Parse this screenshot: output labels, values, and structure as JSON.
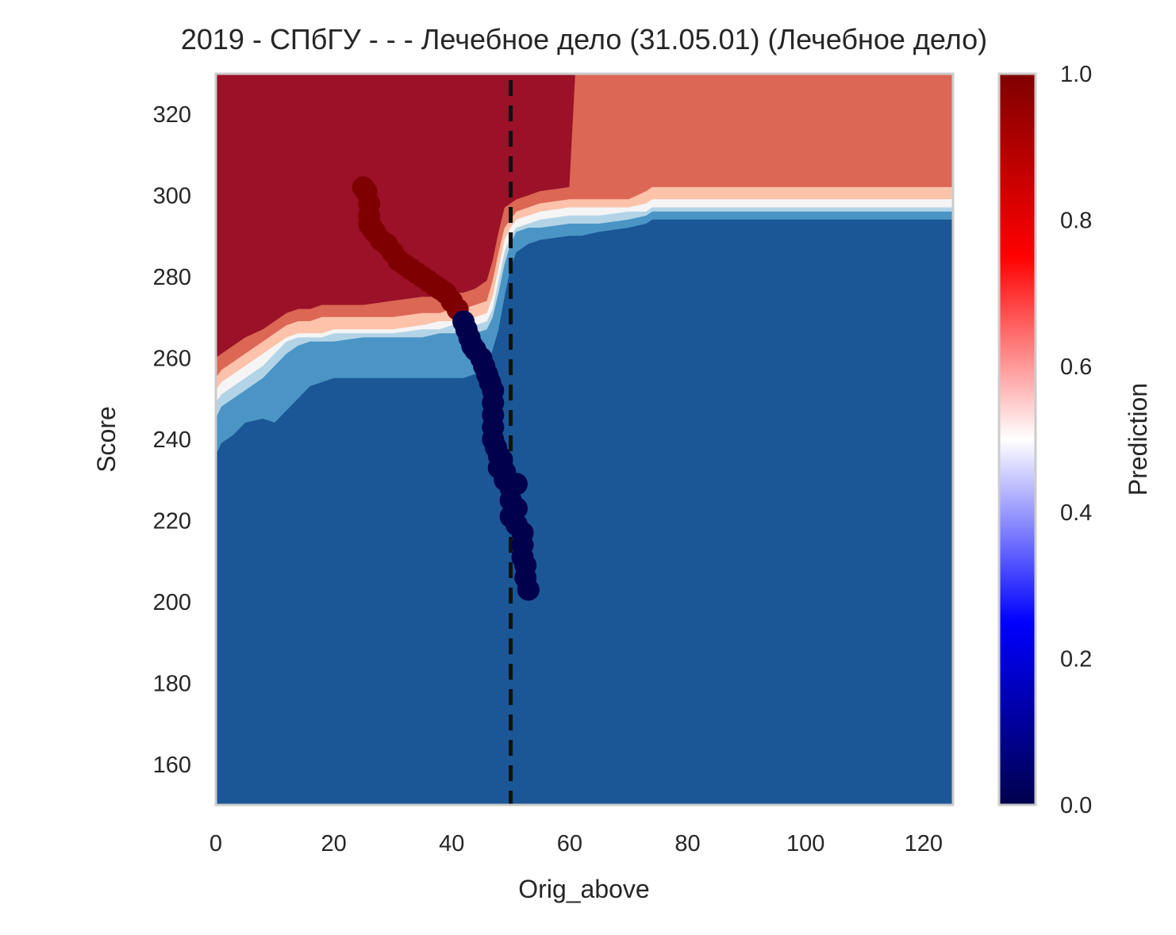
{
  "chart_data": {
    "type": "heatmap",
    "title": "2019 - СПбГУ - - - Лечебное дело (31.05.01) (Лечебное дело)",
    "xlabel": "Orig_above",
    "ylabel": "Score",
    "xlim": [
      0,
      125
    ],
    "ylim": [
      150,
      330
    ],
    "x_ticks": [
      0,
      20,
      40,
      60,
      80,
      100,
      120
    ],
    "y_ticks": [
      160,
      180,
      200,
      220,
      240,
      260,
      280,
      300,
      320
    ],
    "grid": false,
    "legend": "none",
    "colormap": "seismic",
    "colorbar": {
      "label": "Prediction",
      "range": [
        0.0,
        1.0
      ],
      "ticks": [
        "0.0",
        "0.2",
        "0.4",
        "0.6",
        "0.8",
        "1.0"
      ],
      "stops": [
        "#00004c",
        "#0000ff",
        "#ffffff",
        "#ff0000",
        "#7f0000"
      ]
    },
    "contour_levels": [
      {
        "level": "0.0-0.3",
        "color": "#1b5796"
      },
      {
        "level": "0.3-0.4",
        "color": "#4a95c5"
      },
      {
        "level": "0.4-0.5",
        "color": "#b3d4e7"
      },
      {
        "level": "0.5-0.6",
        "color": "#f5f5f5"
      },
      {
        "level": "0.6-0.7",
        "color": "#fcc2aa"
      },
      {
        "level": "0.7-0.8",
        "color": "#db6754"
      },
      {
        "level": "0.8-1.0",
        "color": "#9a1128"
      }
    ],
    "boundaries": {
      "comment": "upper edge score of each contour region (levels 0..5) sampled along x",
      "x": [
        0,
        1,
        3,
        5,
        8,
        10,
        12,
        14,
        16,
        18,
        20,
        25,
        30,
        35,
        38,
        40,
        42,
        44,
        46,
        47,
        48,
        49,
        50,
        51,
        53,
        55,
        60,
        61,
        62,
        65,
        70,
        73,
        74,
        80,
        85,
        90,
        95,
        100,
        110,
        120,
        125
      ],
      "b0": [
        236,
        239,
        241,
        244,
        245,
        244,
        247,
        250,
        253,
        254,
        255,
        255,
        255,
        255,
        255,
        255,
        255,
        256,
        258,
        262,
        267,
        275,
        282,
        286,
        288,
        289,
        290,
        290,
        290,
        291,
        292,
        293,
        294,
        294,
        294,
        294,
        294,
        294,
        294,
        294,
        294
      ],
      "b1": [
        245,
        248,
        250,
        252,
        255,
        258,
        261,
        263,
        264,
        264,
        264,
        265,
        265,
        265,
        266,
        266,
        266,
        266,
        267,
        270,
        276,
        283,
        288,
        291,
        292,
        292,
        293,
        293,
        293,
        293,
        294,
        295,
        296,
        296,
        296,
        296,
        296,
        296,
        296,
        296,
        296
      ],
      "b2": [
        249,
        251,
        253,
        255,
        258,
        261,
        264,
        265,
        265,
        265,
        266,
        266,
        266,
        267,
        267,
        268,
        268,
        268,
        269,
        272,
        279,
        286,
        290,
        292,
        293,
        294,
        295,
        295,
        295,
        295,
        296,
        296,
        297,
        297,
        297,
        297,
        297,
        297,
        297,
        297,
        297
      ],
      "b3": [
        252,
        254,
        256,
        258,
        261,
        263,
        265,
        266,
        266,
        266,
        267,
        267,
        267,
        268,
        269,
        269,
        269,
        270,
        271,
        275,
        282,
        289,
        292,
        294,
        295,
        296,
        297,
        297,
        297,
        297,
        297,
        298,
        299,
        299,
        299,
        299,
        299,
        299,
        299,
        299,
        299
      ],
      "b4": [
        255,
        257,
        259,
        261,
        264,
        266,
        268,
        269,
        269,
        270,
        270,
        270,
        270,
        271,
        271,
        272,
        272,
        273,
        274,
        279,
        286,
        292,
        294,
        296,
        297,
        298,
        299,
        299,
        299,
        299,
        299,
        301,
        302,
        302,
        302,
        302,
        302,
        302,
        302,
        302,
        302
      ],
      "b5": [
        260,
        261,
        263,
        265,
        267,
        269,
        271,
        272,
        272,
        273,
        273,
        273,
        274,
        275,
        275,
        276,
        276,
        277,
        279,
        284,
        291,
        297,
        298,
        299,
        300,
        301,
        302,
        330,
        330,
        330,
        330,
        330,
        330,
        330,
        330,
        330,
        330,
        330,
        330,
        330,
        330
      ]
    },
    "reference_line": {
      "x": 50,
      "style": "dashed",
      "color": "#111111"
    },
    "points": {
      "comment": "trajectory of observed applicants; p is prediction value (1 = dark red, 0 = dark navy)",
      "x": [
        25,
        25.5,
        26,
        26,
        26,
        26.5,
        27,
        28,
        29,
        30,
        31,
        32,
        33,
        34,
        35,
        36,
        37,
        38,
        39,
        40,
        41,
        42,
        42.5,
        43,
        43.5,
        44,
        45,
        45.5,
        46,
        46.5,
        47,
        47,
        47,
        47,
        47,
        47.5,
        48,
        48,
        48.5,
        49,
        49,
        50,
        50,
        50,
        51,
        51,
        51,
        52,
        52,
        52,
        52.5,
        52.5,
        53
      ],
      "y": [
        302,
        301,
        298,
        295,
        293,
        292,
        291,
        289,
        288,
        286,
        284,
        283,
        282,
        281,
        280,
        279,
        278,
        277,
        276,
        274,
        272,
        269,
        267,
        265,
        263,
        262,
        260,
        258,
        256,
        254,
        252,
        249,
        246,
        243,
        240,
        238,
        236,
        233,
        235,
        232,
        230,
        228,
        225,
        221,
        229,
        223,
        219,
        217,
        214,
        211,
        209,
        206,
        203
      ],
      "p": [
        1,
        1,
        1,
        1,
        1,
        1,
        1,
        1,
        1,
        1,
        1,
        1,
        1,
        1,
        1,
        1,
        1,
        1,
        1,
        1,
        1,
        0,
        0,
        0,
        0,
        0,
        0,
        0,
        0,
        0,
        0,
        0,
        0,
        0,
        0,
        0,
        0,
        0,
        0,
        0,
        0,
        0,
        0,
        0,
        0,
        0,
        0,
        0,
        0,
        0,
        0,
        0,
        0
      ]
    },
    "point_colors": {
      "high": "#7f0000",
      "low": "#00004c"
    }
  }
}
